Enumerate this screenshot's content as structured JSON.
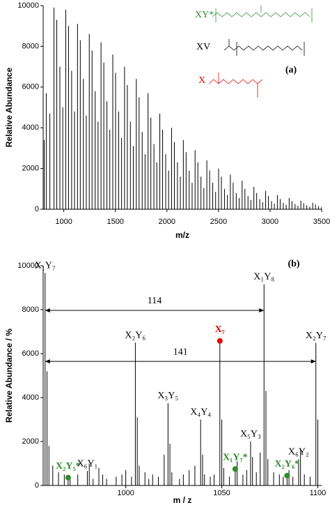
{
  "chart_data": [
    {
      "type": "stick",
      "xlabel": "m/z",
      "ylabel": "Relative Abundance",
      "xlim": [
        800,
        3500
      ],
      "ylim": [
        0,
        10000
      ],
      "xticks": [
        1000,
        1500,
        2000,
        2500,
        3000,
        3500
      ],
      "yticks": [
        0,
        2000,
        4000,
        6000,
        8000,
        10000
      ],
      "color": "#000000",
      "panel_label": "(a)",
      "structure_labels": [
        {
          "text": "XY*",
          "color": "#2e8b2e"
        },
        {
          "text": "XV",
          "color": "#000000"
        },
        {
          "text": "X",
          "color": "#e00000"
        }
      ],
      "x": [
        810,
        830,
        865,
        905,
        1019,
        1133,
        1247,
        1361,
        1475,
        1589,
        1703,
        1817,
        1931,
        2045,
        2159,
        2273,
        2387,
        2501,
        2615,
        2729,
        2843,
        2957,
        3071,
        3185,
        3299,
        3413,
        932,
        1046,
        1160,
        1274,
        1388,
        1502,
        1616,
        1730,
        1844,
        1958,
        2072,
        2186,
        2300,
        2414,
        2528,
        2642,
        2756,
        2870,
        2984,
        3098,
        3212,
        3326,
        3440,
        962,
        1076,
        1190,
        1304,
        1418,
        1532,
        1646,
        1760,
        1874,
        1988,
        2102,
        2216,
        2330,
        2444,
        2558,
        2672,
        2786,
        2900,
        3014,
        3128,
        3242,
        3356,
        3470,
        990,
        1104,
        1218,
        1332,
        1446,
        1560,
        1674,
        1788,
        1902,
        2016,
        2130,
        2244,
        2358,
        2472,
        2586,
        2700,
        2814,
        2928,
        3042,
        3156,
        3270,
        3384,
        3498
      ],
      "values": [
        3400,
        5700,
        4700,
        9900,
        9800,
        9100,
        8600,
        8200,
        7600,
        7000,
        6400,
        5700,
        4700,
        4000,
        3400,
        2900,
        2400,
        2000,
        1700,
        1400,
        1100,
        900,
        700,
        550,
        420,
        320,
        9300,
        9000,
        8300,
        7800,
        7200,
        6700,
        6100,
        5500,
        4500,
        3900,
        3300,
        2800,
        2300,
        1900,
        1600,
        1300,
        1000,
        800,
        650,
        500,
        400,
        300,
        240,
        7000,
        6800,
        6400,
        5800,
        5300,
        4800,
        4300,
        3800,
        3200,
        2700,
        2300,
        1900,
        1600,
        1300,
        1000,
        800,
        650,
        500,
        400,
        320,
        260,
        200,
        160,
        5000,
        4800,
        4600,
        4300,
        3900,
        3500,
        3100,
        2700,
        2300,
        1900,
        1600,
        1300,
        1050,
        850,
        700,
        550,
        450,
        350,
        280,
        220,
        170,
        130,
        100
      ]
    },
    {
      "type": "stick",
      "xlabel": "m / z",
      "ylabel": "Relative Abundance / %",
      "xlim": [
        957,
        1102
      ],
      "ylim": [
        0,
        10000
      ],
      "xticks": [
        1000,
        1050,
        1100
      ],
      "yticks": [
        0,
        2000,
        4000,
        6000,
        8000,
        10000
      ],
      "color": "#000000",
      "panel_label": "(b)",
      "x": [
        958,
        959,
        960,
        962,
        965,
        968,
        970,
        971,
        975,
        980,
        981,
        983,
        986,
        988,
        990,
        995,
        998,
        1000,
        1003,
        1005,
        1006,
        1007,
        1010,
        1012,
        1014,
        1017,
        1020,
        1022,
        1023,
        1024,
        1028,
        1030,
        1033,
        1036,
        1039,
        1040,
        1041,
        1044,
        1046,
        1049,
        1050,
        1051,
        1054,
        1057,
        1058,
        1061,
        1063,
        1065,
        1066,
        1068,
        1070,
        1072,
        1073,
        1074,
        1077,
        1080,
        1082,
        1084,
        1085,
        1087,
        1090,
        1091,
        1093,
        1096,
        1099,
        1100
      ],
      "values": [
        9670,
        5200,
        1800,
        900,
        600,
        500,
        360,
        300,
        500,
        660,
        1000,
        300,
        800,
        500,
        300,
        400,
        500,
        700,
        400,
        6500,
        3100,
        900,
        600,
        300,
        500,
        400,
        1400,
        3750,
        1900,
        600,
        300,
        500,
        700,
        900,
        3000,
        1400,
        500,
        400,
        500,
        6580,
        3000,
        800,
        400,
        750,
        1100,
        500,
        700,
        2000,
        1300,
        600,
        1500,
        9160,
        4300,
        1200,
        600,
        500,
        400,
        450,
        700,
        400,
        1200,
        1600,
        500,
        400,
        6490,
        3000
      ],
      "peak_labels": [
        {
          "text": "X₁Y₇",
          "x": 958,
          "color": "#000000",
          "marker": false
        },
        {
          "text": "X₂Y₅*",
          "x": 970,
          "color": "#2e8b2e",
          "marker": true
        },
        {
          "text": "X₆Y₁",
          "x": 980,
          "color": "#000000",
          "marker": false
        },
        {
          "text": "X₂Y₆",
          "x": 1005,
          "color": "#000000",
          "marker": false
        },
        {
          "text": "X₃Y₅",
          "x": 1022,
          "color": "#000000",
          "marker": false
        },
        {
          "text": "X₄Y₄",
          "x": 1039,
          "color": "#000000",
          "marker": false
        },
        {
          "text": "X₇",
          "x": 1049,
          "color": "#e00000",
          "marker": true
        },
        {
          "text": "X₁Y₇*",
          "x": 1057,
          "color": "#2e8b2e",
          "marker": true
        },
        {
          "text": "X₅Y₃",
          "x": 1065,
          "color": "#000000",
          "marker": false
        },
        {
          "text": "X₁Y₈",
          "x": 1072,
          "color": "#000000",
          "marker": false
        },
        {
          "text": "X₂Y₆*",
          "x": 1084,
          "color": "#2e8b2e",
          "marker": true
        },
        {
          "text": "X₆Y₂",
          "x": 1090,
          "color": "#000000",
          "marker": false
        },
        {
          "text": "X₂Y₇",
          "x": 1099,
          "color": "#000000",
          "marker": false
        }
      ],
      "intervals": [
        {
          "label": "114",
          "from": 958,
          "to": 1072
        },
        {
          "label": "141",
          "from": 958,
          "to": 1099
        }
      ]
    }
  ]
}
